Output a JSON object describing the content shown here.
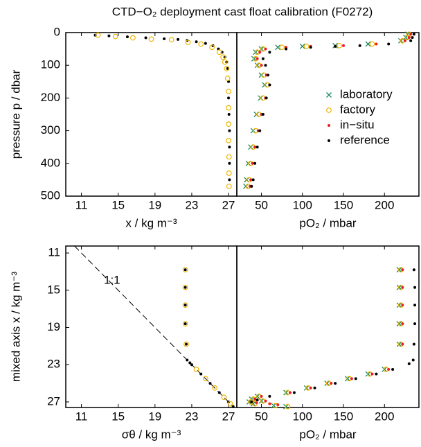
{
  "chart_data": [
    {
      "type": "scatter",
      "title": "CTD−O₂ deployment cast float calibration (F0272)",
      "xlabel": "x / kg m⁻³",
      "ylabel": "pressure p / dbar",
      "xlim": [
        9.3,
        27.9
      ],
      "ylim": [
        0,
        500
      ],
      "y_inverted": true,
      "xticks": [
        11,
        15,
        19,
        23,
        27
      ],
      "yticks": [
        0,
        100,
        200,
        300,
        400,
        500
      ],
      "series": [
        {
          "name": "reference",
          "color": "#000000",
          "marker": "dot",
          "x": [
            12.5,
            14,
            16,
            18,
            20,
            21.5,
            22.5,
            23.5,
            24.5,
            25.3,
            25.9,
            26.3,
            26.6,
            26.8,
            26.9,
            27,
            27,
            27.05,
            27.1,
            27.1,
            27.1,
            27.1
          ],
          "values": [
            8,
            10,
            13,
            16,
            19,
            21,
            24,
            28,
            33,
            40,
            50,
            60,
            75,
            90,
            110,
            150,
            200,
            250,
            300,
            350,
            400,
            450
          ]
        },
        {
          "name": "factory",
          "color": "#f0b400",
          "marker": "circle",
          "x": [
            12.8,
            14.7,
            16.6,
            18.6,
            20.8,
            22.6,
            24,
            25.2,
            26,
            26.4,
            26.6,
            26.8,
            26.9,
            27,
            27,
            27,
            27,
            27.05,
            27.05,
            27.05
          ],
          "values": [
            8,
            12,
            16,
            20,
            22,
            30,
            35,
            45,
            60,
            75,
            90,
            110,
            140,
            180,
            230,
            280,
            330,
            380,
            430,
            470
          ]
        }
      ]
    },
    {
      "type": "scatter",
      "xlabel": "pO₂ / mbar",
      "xlim": [
        20,
        242
      ],
      "ylim": [
        0,
        500
      ],
      "y_inverted": true,
      "xticks": [
        50,
        100,
        150,
        200
      ],
      "legend": "center right",
      "series": [
        {
          "name": "laboratory",
          "color": "#1a8a5a",
          "marker": "x",
          "x": [
            228,
            226,
            220,
            180,
            140,
            100,
            70,
            50,
            43,
            41,
            45,
            50,
            54,
            49,
            44,
            40,
            37,
            34,
            32,
            31
          ],
          "values": [
            5,
            15,
            25,
            35,
            40,
            42,
            45,
            50,
            60,
            80,
            100,
            130,
            160,
            200,
            250,
            300,
            350,
            400,
            450,
            470
          ]
        },
        {
          "name": "factory",
          "color": "#f0b400",
          "marker": "circle",
          "x": [
            230,
            228,
            222,
            185,
            145,
            105,
            75,
            52,
            45,
            43,
            47,
            53,
            57,
            52,
            47,
            43,
            40,
            37,
            35,
            34
          ],
          "values": [
            5,
            15,
            25,
            35,
            40,
            42,
            45,
            50,
            60,
            80,
            100,
            130,
            160,
            200,
            250,
            300,
            350,
            400,
            450,
            470
          ]
        },
        {
          "name": "in−situ",
          "color": "#ee1c1c",
          "marker": "dot",
          "x": [
            232,
            230,
            225,
            190,
            150,
            110,
            80,
            55,
            48,
            45,
            50,
            56,
            60,
            55,
            50,
            46,
            42,
            39,
            37,
            36
          ],
          "values": [
            5,
            15,
            25,
            35,
            40,
            42,
            45,
            50,
            60,
            80,
            100,
            130,
            160,
            200,
            250,
            300,
            350,
            400,
            450,
            470
          ]
        },
        {
          "name": "reference",
          "color": "#000000",
          "marker": "dot",
          "x": [
            236,
            234,
            232,
            205,
            170,
            140,
            110,
            80,
            60,
            52,
            55,
            58,
            60,
            56,
            52,
            48,
            45,
            42,
            40,
            38
          ],
          "values": [
            5,
            15,
            25,
            35,
            40,
            42,
            45,
            50,
            60,
            80,
            100,
            130,
            160,
            200,
            250,
            300,
            350,
            400,
            450,
            470
          ]
        }
      ]
    },
    {
      "type": "scatter",
      "xlabel": "σθ / kg m⁻³",
      "ylabel": "mixed axis x / kg m⁻³",
      "xlim": [
        9.3,
        27.9
      ],
      "ylim": [
        10.25,
        27.6
      ],
      "y_inverted": true,
      "xticks": [
        11,
        15,
        19,
        23,
        27
      ],
      "yticks": [
        11,
        15,
        19,
        23,
        27
      ],
      "identity_line": true,
      "annotation": "1:1",
      "series": [
        {
          "name": "reference",
          "color": "#000000",
          "marker": "dot",
          "x": [
            22.3,
            22.3,
            22.3,
            22.3,
            22.4,
            22.5,
            22.8,
            23,
            24,
            25,
            26,
            27,
            27.5
          ],
          "values": [
            12.8,
            14.7,
            16.6,
            18.6,
            20.8,
            22.5,
            22.8,
            23,
            24,
            25,
            26,
            27,
            27.5
          ]
        },
        {
          "name": "factory",
          "color": "#f0b400",
          "marker": "circle",
          "x": [
            22.3,
            22.3,
            22.3,
            22.3,
            22.4,
            23.5,
            24.5,
            25.5,
            26.5,
            27.2
          ],
          "values": [
            12.8,
            14.7,
            16.6,
            18.6,
            20.8,
            23.5,
            24.5,
            25.5,
            26.5,
            27.2
          ]
        }
      ]
    },
    {
      "type": "scatter",
      "xlabel": "pO₂ / mbar",
      "xlim": [
        20,
        242
      ],
      "ylim": [
        10.25,
        27.6
      ],
      "y_inverted": true,
      "xticks": [
        50,
        100,
        150,
        200
      ],
      "series": [
        {
          "name": "laboratory",
          "color": "#1a8a5a",
          "marker": "x",
          "x": [
            218,
            218,
            218,
            218,
            218,
            200,
            180,
            155,
            130,
            105,
            80,
            45,
            38,
            50,
            35,
            40,
            65,
            80
          ],
          "values": [
            12.8,
            14.7,
            16.6,
            18.6,
            20.8,
            23.5,
            24,
            24.5,
            25,
            25.5,
            26,
            26.4,
            26.7,
            26.9,
            27,
            27.2,
            27.4,
            27.5
          ]
        },
        {
          "name": "factory",
          "color": "#f0b400",
          "marker": "circle",
          "x": [
            220,
            220,
            220,
            220,
            220,
            202,
            182,
            157,
            132,
            107,
            82,
            47,
            40,
            52,
            37,
            42,
            67,
            82
          ],
          "values": [
            12.8,
            14.7,
            16.6,
            18.6,
            20.8,
            23.5,
            24,
            24.5,
            25,
            25.5,
            26,
            26.4,
            26.7,
            26.9,
            27,
            27.2,
            27.4,
            27.5
          ]
        },
        {
          "name": "in−situ",
          "color": "#ee1c1c",
          "marker": "dot",
          "x": [
            222,
            222,
            222,
            222,
            222,
            205,
            185,
            160,
            135,
            110,
            85,
            50,
            42,
            55,
            38,
            44,
            60,
            70
          ],
          "values": [
            12.8,
            14.7,
            16.6,
            18.6,
            20.8,
            23.5,
            24,
            24.5,
            25,
            25.5,
            26,
            26.4,
            26.7,
            26.9,
            27,
            27.1,
            27.2,
            27.3
          ]
        },
        {
          "name": "reference",
          "color": "#000000",
          "marker": "dot",
          "x": [
            236,
            237,
            237,
            237,
            236,
            235,
            230,
            210,
            190,
            165,
            140,
            115,
            90,
            60,
            45,
            38
          ],
          "values": [
            12.8,
            14.7,
            16.6,
            18.6,
            20.8,
            22.5,
            22.9,
            23.5,
            24,
            24.5,
            25,
            25.5,
            26,
            26.4,
            26.8,
            27
          ]
        }
      ]
    }
  ]
}
